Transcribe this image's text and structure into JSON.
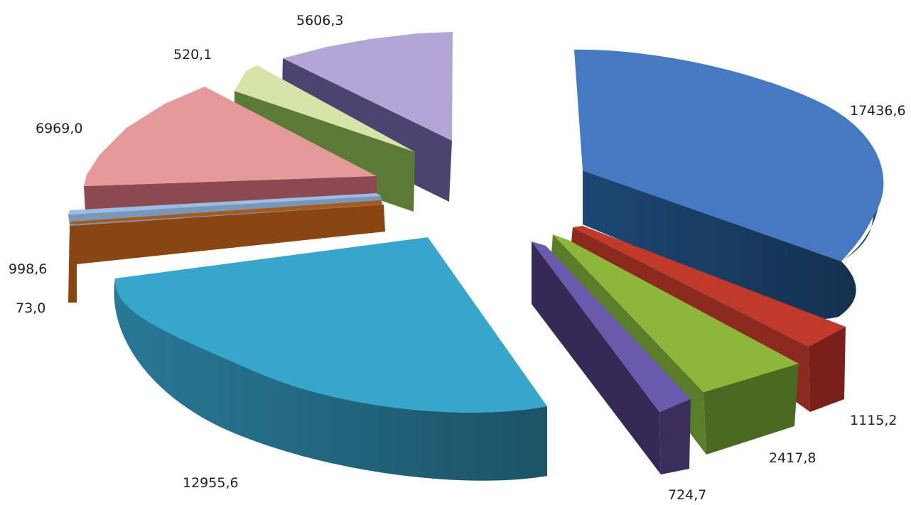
{
  "chart_data": {
    "type": "pie",
    "title": "",
    "style": "3d-exploded",
    "value_labels": [
      "17436,6",
      "1115,2",
      "2417,8",
      "724,7",
      "12955,6",
      "73,0",
      "998,6",
      "6969,0",
      "520,1",
      "5606,3"
    ],
    "slices": [
      {
        "value": 17436.6,
        "label": "17436,6",
        "color": "#4579c2"
      },
      {
        "value": 1115.2,
        "label": "1115,2",
        "color": "#c0392b"
      },
      {
        "value": 2417.8,
        "label": "2417,8",
        "color": "#8db63b"
      },
      {
        "value": 724.7,
        "label": "724,7",
        "color": "#6a5aad"
      },
      {
        "value": 12955.6,
        "label": "12955,6",
        "color": "#37a6cc"
      },
      {
        "value": 73.0,
        "label": "73,0",
        "color": "#a65a1c"
      },
      {
        "value": 998.6,
        "label": "998,6",
        "color": "#9cbde3"
      },
      {
        "value": 6969.0,
        "label": "6969,0",
        "color": "#e59a99"
      },
      {
        "value": 520.1,
        "label": "520,1",
        "color": "#d7e4a8"
      },
      {
        "value": 5606.3,
        "label": "5606,3",
        "color": "#b3a5d6"
      }
    ]
  }
}
